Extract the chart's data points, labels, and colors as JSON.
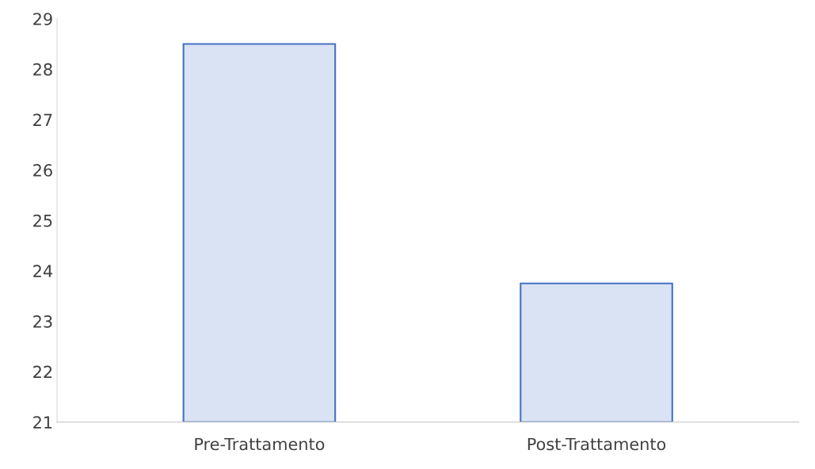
{
  "chart_data": {
    "type": "bar",
    "categories": [
      "Pre-Trattamento",
      "Post-Trattamento"
    ],
    "values": [
      28.5,
      23.75
    ],
    "color": "#dae3f3",
    "ylim": [
      21,
      29
    ],
    "yticks": [
      21,
      22,
      23,
      24,
      25,
      26,
      27,
      28,
      29
    ],
    "grid": false,
    "legend": false
  }
}
